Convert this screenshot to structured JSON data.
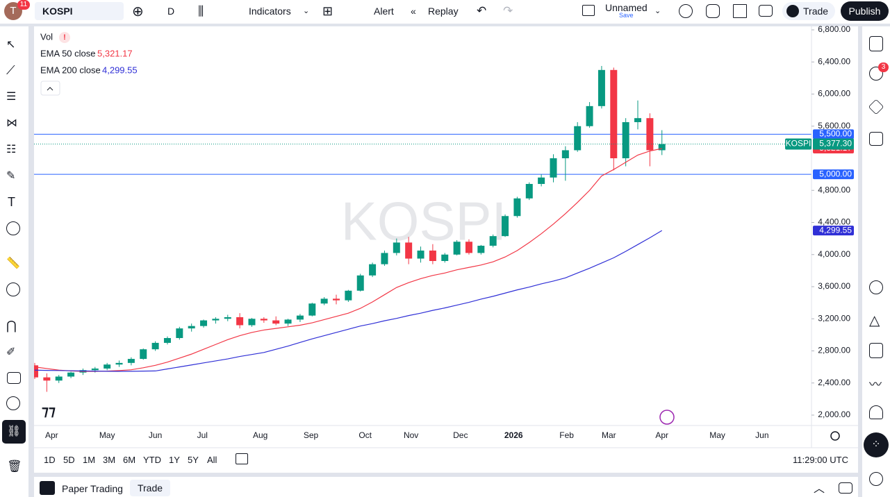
{
  "toolbar": {
    "avatar": "T",
    "notifications": "11",
    "symbol": "KOSPI",
    "interval": "D",
    "indicators": "Indicators",
    "alert": "Alert",
    "replay": "Replay",
    "layout_name": "Unnamed",
    "layout_status": "Save",
    "trade": "Trade",
    "publish": "Publish"
  },
  "sidebar": {
    "alerts_badge": "3"
  },
  "legend": {
    "volume": "Vol"
  },
  "bottom_bar": {
    "ranges": [
      "1D",
      "5D",
      "1M",
      "3M",
      "6M",
      "YTD",
      "1Y",
      "5Y",
      "All"
    ],
    "clock": "11:29:00 UTC"
  },
  "panel": {
    "title": "Paper Trading",
    "tab": "Trade"
  },
  "chart_data": {
    "type": "candlestick",
    "watermark": "KOSPI",
    "xlim": [
      0,
      64.4
    ],
    "xticks": [
      {
        "value": 1.4,
        "label": "Apr"
      },
      {
        "value": 6.0,
        "label": "May"
      },
      {
        "value": 10.0,
        "label": "Jun"
      },
      {
        "value": 13.9,
        "label": "Jul"
      },
      {
        "value": 18.7,
        "label": "Aug"
      },
      {
        "value": 22.9,
        "label": "Sep"
      },
      {
        "value": 27.4,
        "label": "Oct"
      },
      {
        "value": 31.2,
        "label": "Nov"
      },
      {
        "value": 35.3,
        "label": "Dec"
      },
      {
        "value": 39.7,
        "label": "2026"
      },
      {
        "value": 44.1,
        "label": "Feb"
      },
      {
        "value": 47.6,
        "label": "Mar"
      },
      {
        "value": 52.0,
        "label": "Apr"
      },
      {
        "value": 56.6,
        "label": "May"
      },
      {
        "value": 60.3,
        "label": "Jun"
      }
    ],
    "ylim": [
      2000,
      6800
    ],
    "yticks": [
      {
        "value": 6800,
        "label": "6,800.00"
      },
      {
        "value": 6400,
        "label": "6,400.00"
      },
      {
        "value": 6000,
        "label": "6,000.00"
      },
      {
        "value": 5600,
        "label": "5,600.00"
      },
      {
        "value": 4800,
        "label": "4,800.00"
      },
      {
        "value": 4400,
        "label": "4,400.00"
      },
      {
        "value": 4000,
        "label": "4,000.00"
      },
      {
        "value": 3600,
        "label": "3,600.00"
      },
      {
        "value": 3200,
        "label": "3,200.00"
      },
      {
        "value": 2800,
        "label": "2,800.00"
      },
      {
        "value": 2400,
        "label": "2,400.00"
      },
      {
        "value": 2000,
        "label": "2,000.00"
      }
    ],
    "grid": false,
    "levels": [
      {
        "value": 5500,
        "label": "5,500.00",
        "color": "#2962ff"
      },
      {
        "value": 5000,
        "label": "5,000.00",
        "color": "#2962ff"
      }
    ],
    "last_price": {
      "name": "KOSPI",
      "value": 5377.3,
      "label": "5,377.30",
      "color": "#089981"
    },
    "series": [
      {
        "name": "KOSPI",
        "up_color": "#089981",
        "down_color": "#f23645",
        "ohlc": [
          [
            2620,
            2650,
            2450,
            2470
          ],
          [
            2470,
            2520,
            2290,
            2430
          ],
          [
            2430,
            2500,
            2400,
            2480
          ],
          [
            2480,
            2540,
            2460,
            2530
          ],
          [
            2530,
            2580,
            2500,
            2560
          ],
          [
            2560,
            2600,
            2530,
            2580
          ],
          [
            2580,
            2650,
            2560,
            2630
          ],
          [
            2630,
            2680,
            2600,
            2650
          ],
          [
            2650,
            2720,
            2620,
            2700
          ],
          [
            2700,
            2830,
            2690,
            2820
          ],
          [
            2820,
            2920,
            2800,
            2900
          ],
          [
            2900,
            2980,
            2880,
            2960
          ],
          [
            2960,
            3100,
            2940,
            3080
          ],
          [
            3080,
            3140,
            3040,
            3110
          ],
          [
            3110,
            3190,
            3090,
            3180
          ],
          [
            3180,
            3220,
            3140,
            3200
          ],
          [
            3200,
            3250,
            3170,
            3220
          ],
          [
            3220,
            3270,
            3080,
            3120
          ],
          [
            3120,
            3210,
            3100,
            3200
          ],
          [
            3200,
            3220,
            3150,
            3180
          ],
          [
            3180,
            3230,
            3120,
            3140
          ],
          [
            3140,
            3200,
            3110,
            3190
          ],
          [
            3190,
            3260,
            3160,
            3240
          ],
          [
            3240,
            3400,
            3230,
            3390
          ],
          [
            3390,
            3470,
            3370,
            3450
          ],
          [
            3450,
            3500,
            3380,
            3430
          ],
          [
            3430,
            3560,
            3410,
            3550
          ],
          [
            3550,
            3760,
            3540,
            3740
          ],
          [
            3740,
            3900,
            3720,
            3880
          ],
          [
            3880,
            4050,
            3860,
            4020
          ],
          [
            4020,
            4200,
            3990,
            4150
          ],
          [
            4150,
            4220,
            3880,
            3950
          ],
          [
            3950,
            4100,
            3900,
            4050
          ],
          [
            4050,
            4130,
            3880,
            3920
          ],
          [
            3920,
            4020,
            3900,
            4000
          ],
          [
            4000,
            4180,
            3990,
            4160
          ],
          [
            4160,
            4190,
            4000,
            4020
          ],
          [
            4020,
            4120,
            4000,
            4110
          ],
          [
            4110,
            4250,
            4090,
            4230
          ],
          [
            4230,
            4500,
            4220,
            4480
          ],
          [
            4480,
            4720,
            4460,
            4700
          ],
          [
            4700,
            4900,
            4680,
            4880
          ],
          [
            4880,
            5000,
            4850,
            4960
          ],
          [
            4960,
            5250,
            4900,
            5200
          ],
          [
            5200,
            5350,
            4920,
            5300
          ],
          [
            5300,
            5650,
            5280,
            5600
          ],
          [
            5600,
            5900,
            5580,
            5850
          ],
          [
            5850,
            6350,
            5820,
            6300
          ],
          [
            6300,
            6330,
            5050,
            5200
          ],
          [
            5200,
            5700,
            5100,
            5650
          ],
          [
            5650,
            5920,
            5560,
            5700
          ],
          [
            5700,
            5760,
            5100,
            5300
          ],
          [
            5300,
            5550,
            5240,
            5377.3
          ]
        ]
      },
      {
        "name": "EMA 50 close",
        "color": "#f23645",
        "last_label": "5,321.17",
        "values": [
          2600,
          2580,
          2560,
          2550,
          2545,
          2545,
          2548,
          2555,
          2565,
          2590,
          2620,
          2660,
          2710,
          2760,
          2820,
          2880,
          2940,
          2990,
          3030,
          3060,
          3080,
          3100,
          3120,
          3150,
          3190,
          3230,
          3270,
          3330,
          3410,
          3500,
          3590,
          3650,
          3700,
          3740,
          3770,
          3810,
          3840,
          3870,
          3910,
          3970,
          4050,
          4150,
          4260,
          4380,
          4510,
          4650,
          4800,
          4980,
          5060,
          5150,
          5240,
          5290,
          5321.17
        ]
      },
      {
        "name": "EMA 200 close",
        "color": "#2f2fd6",
        "last_label": "4,299.55",
        "values": [
          2560,
          2557,
          2555,
          2553,
          2550,
          2548,
          2546,
          2545,
          2546,
          2548,
          2550,
          2575,
          2600,
          2625,
          2650,
          2675,
          2700,
          2730,
          2755,
          2780,
          2820,
          2860,
          2905,
          2950,
          2990,
          3030,
          3070,
          3110,
          3140,
          3175,
          3205,
          3240,
          3270,
          3305,
          3335,
          3370,
          3405,
          3445,
          3480,
          3520,
          3560,
          3595,
          3635,
          3670,
          3710,
          3770,
          3830,
          3895,
          3960,
          4040,
          4125,
          4210,
          4299.55
        ]
      }
    ]
  }
}
